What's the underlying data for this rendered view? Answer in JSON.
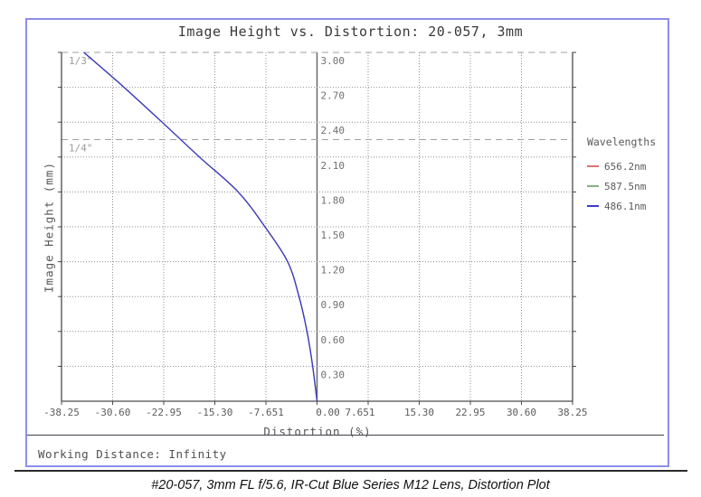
{
  "accent_border_color": "#8d8dee",
  "header": {
    "title": "Image Height vs. Distortion: 20-057, 3mm"
  },
  "chart_data": {
    "type": "line",
    "title": "Image Height vs. Distortion: 20-057, 3mm",
    "xlabel": "Distortion (%)",
    "ylabel": "Image Height (mm)",
    "xlim": [
      -38.25,
      38.25
    ],
    "ylim": [
      0,
      3.0
    ],
    "grid": true,
    "x_tick_labels": [
      "-38.25",
      "-30.60",
      "-22.95",
      "-15.30",
      "-7.651",
      "0.00",
      "7.651",
      "15.30",
      "22.95",
      "30.60",
      "38.25"
    ],
    "x_tick_values": [
      -38.25,
      -30.6,
      -22.95,
      -15.3,
      -7.651,
      0,
      7.651,
      15.3,
      22.95,
      30.6,
      38.25
    ],
    "y_tick_labels": [
      "3.00",
      "2.70",
      "2.40",
      "2.10",
      "1.80",
      "1.50",
      "1.20",
      "0.90",
      "0.60",
      "0.30"
    ],
    "y_tick_values": [
      3.0,
      2.7,
      2.4,
      2.1,
      1.8,
      1.5,
      1.2,
      0.9,
      0.6,
      0.3
    ],
    "sensor_format_lines": [
      {
        "label": "1/3\"",
        "image_height_mm": 3.0
      },
      {
        "label": "1/4\"",
        "image_height_mm": 2.25
      }
    ],
    "legend_title": "Wavelengths",
    "legend_position": "right",
    "series": [
      {
        "name": "656.2nm",
        "color": "#dd7272",
        "y_image_height_mm": [
          0,
          0.3,
          0.6,
          0.9,
          1.2,
          1.5,
          1.8,
          2.1,
          2.4,
          2.7,
          3.0
        ],
        "x_distortion_pct": [
          0,
          -0.65,
          -1.5,
          -2.7,
          -4.4,
          -7.8,
          -11.8,
          -17.6,
          -23.2,
          -28.9,
          -34.9
        ]
      },
      {
        "name": "587.5nm",
        "color": "#84b284",
        "y_image_height_mm": [
          0,
          0.3,
          0.6,
          0.9,
          1.2,
          1.5,
          1.8,
          2.1,
          2.4,
          2.7,
          3.0
        ],
        "x_distortion_pct": [
          0,
          -0.65,
          -1.5,
          -2.7,
          -4.4,
          -7.8,
          -11.8,
          -17.6,
          -23.2,
          -28.9,
          -34.9
        ]
      },
      {
        "name": "486.1nm",
        "color": "#3a3ac8",
        "y_image_height_mm": [
          0,
          0.3,
          0.6,
          0.9,
          1.2,
          1.5,
          1.8,
          2.1,
          2.4,
          2.7,
          3.0
        ],
        "x_distortion_pct": [
          0,
          -0.65,
          -1.5,
          -2.7,
          -4.4,
          -7.8,
          -11.8,
          -17.6,
          -23.2,
          -28.9,
          -34.9
        ]
      }
    ]
  },
  "footer": {
    "working_distance": "Working Distance: Infinity"
  },
  "caption": "#20-057, 3mm FL f/5.6, IR-Cut Blue Series M12 Lens, Distortion Plot"
}
